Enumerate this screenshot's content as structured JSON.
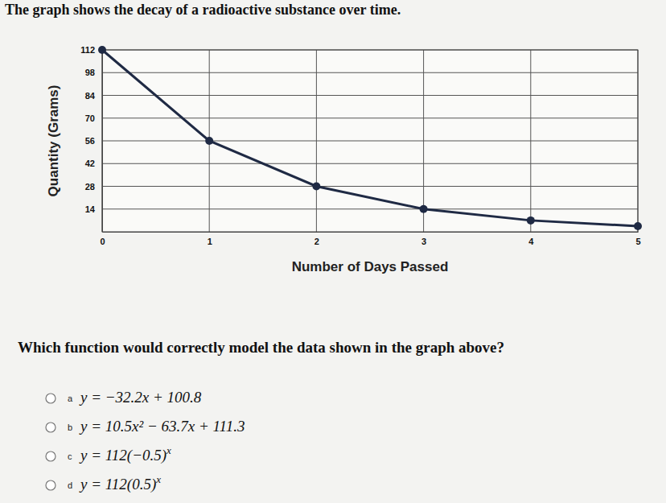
{
  "heading": "The graph shows the decay of a radioactive substance over time.",
  "chart_data": {
    "type": "line",
    "x_label": "Number of Days Passed",
    "y_label": "Quantity (Grams)",
    "x": [
      0,
      1,
      2,
      3,
      4,
      5
    ],
    "values": [
      112,
      56,
      28,
      14,
      7,
      3.5
    ],
    "color": "#1f2a44",
    "marker": "circle",
    "xlim": [
      0,
      5
    ],
    "xticks": [
      0,
      1,
      2,
      3,
      4,
      5
    ],
    "ylim": [
      0,
      112
    ],
    "yticks": [
      14,
      28,
      42,
      56,
      70,
      84,
      98,
      112
    ],
    "grid": true
  },
  "question": "Which function would correctly model the data shown in the graph above?",
  "options": [
    {
      "letter": "a",
      "text": "y = −32.2x + 100.8"
    },
    {
      "letter": "b",
      "text": "y = 10.5x² − 63.7x + 111.3"
    },
    {
      "letter": "c",
      "text": "y = 112(−0.5)",
      "sup": "x"
    },
    {
      "letter": "d",
      "text": "y = 112(0.5)",
      "sup": "x"
    }
  ]
}
